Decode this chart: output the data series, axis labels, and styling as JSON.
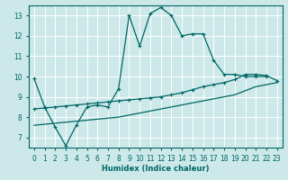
{
  "xlabel": "Humidex (Indice chaleur)",
  "bg_color": "#cce8e8",
  "grid_color": "#ffffff",
  "line_color": "#006666",
  "xlim": [
    -0.5,
    23.5
  ],
  "ylim": [
    6.5,
    13.5
  ],
  "xticks": [
    0,
    1,
    2,
    3,
    4,
    5,
    6,
    7,
    8,
    9,
    10,
    11,
    12,
    13,
    14,
    15,
    16,
    17,
    18,
    19,
    20,
    21,
    22,
    23
  ],
  "yticks": [
    7,
    8,
    9,
    10,
    11,
    12,
    13
  ],
  "line1_x": [
    0,
    1,
    2,
    3,
    4,
    5,
    6,
    7,
    8,
    9,
    10,
    11,
    12,
    13,
    14,
    15,
    16,
    17,
    18,
    19,
    20,
    21,
    22
  ],
  "line1_y": [
    9.9,
    8.5,
    7.5,
    6.6,
    7.6,
    8.5,
    8.6,
    8.5,
    9.4,
    13.0,
    11.5,
    13.1,
    13.4,
    13.0,
    12.0,
    12.1,
    12.1,
    10.8,
    10.1,
    10.1,
    10.0,
    10.0,
    10.0
  ],
  "line2_x": [
    0,
    1,
    2,
    3,
    4,
    5,
    6,
    7,
    8,
    9,
    10,
    11,
    12,
    13,
    14,
    15,
    16,
    17,
    18,
    19,
    20,
    21,
    22,
    23
  ],
  "line2_y": [
    8.4,
    8.45,
    8.5,
    8.55,
    8.6,
    8.65,
    8.7,
    8.75,
    8.8,
    8.85,
    8.9,
    8.95,
    9.0,
    9.1,
    9.2,
    9.35,
    9.5,
    9.6,
    9.7,
    9.85,
    10.1,
    10.1,
    10.05,
    9.8
  ],
  "line3_x": [
    0,
    1,
    2,
    3,
    4,
    5,
    6,
    7,
    8,
    9,
    10,
    11,
    12,
    13,
    14,
    15,
    16,
    17,
    18,
    19,
    20,
    21,
    22,
    23
  ],
  "line3_y": [
    7.6,
    7.65,
    7.7,
    7.75,
    7.8,
    7.85,
    7.9,
    7.95,
    8.0,
    8.1,
    8.2,
    8.3,
    8.4,
    8.5,
    8.6,
    8.7,
    8.8,
    8.9,
    9.0,
    9.1,
    9.3,
    9.5,
    9.6,
    9.7
  ]
}
